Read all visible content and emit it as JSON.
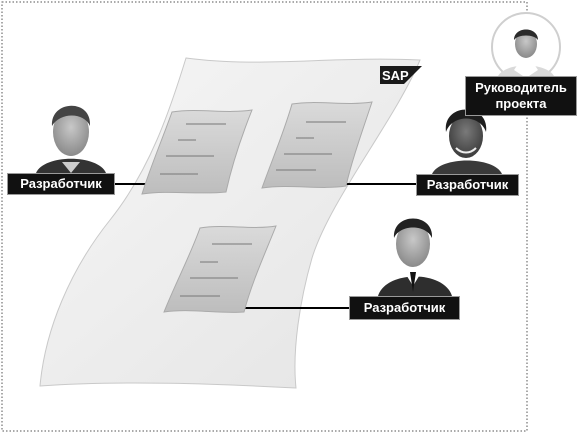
{
  "logo": {
    "text": "SAP"
  },
  "roles": {
    "project_manager": "Руководитель проекта",
    "developer_left": "Разработчик",
    "developer_right": "Разработчик",
    "developer_bottom": "Разработчик"
  },
  "colors": {
    "label_background": "#111111",
    "label_text": "#ffffff",
    "paper_fill": "#eeeeee",
    "document_fill": "#cfcfcf",
    "connector_line": "#000000"
  },
  "icons": [
    "person-photo",
    "document-icon",
    "sap-logo"
  ]
}
